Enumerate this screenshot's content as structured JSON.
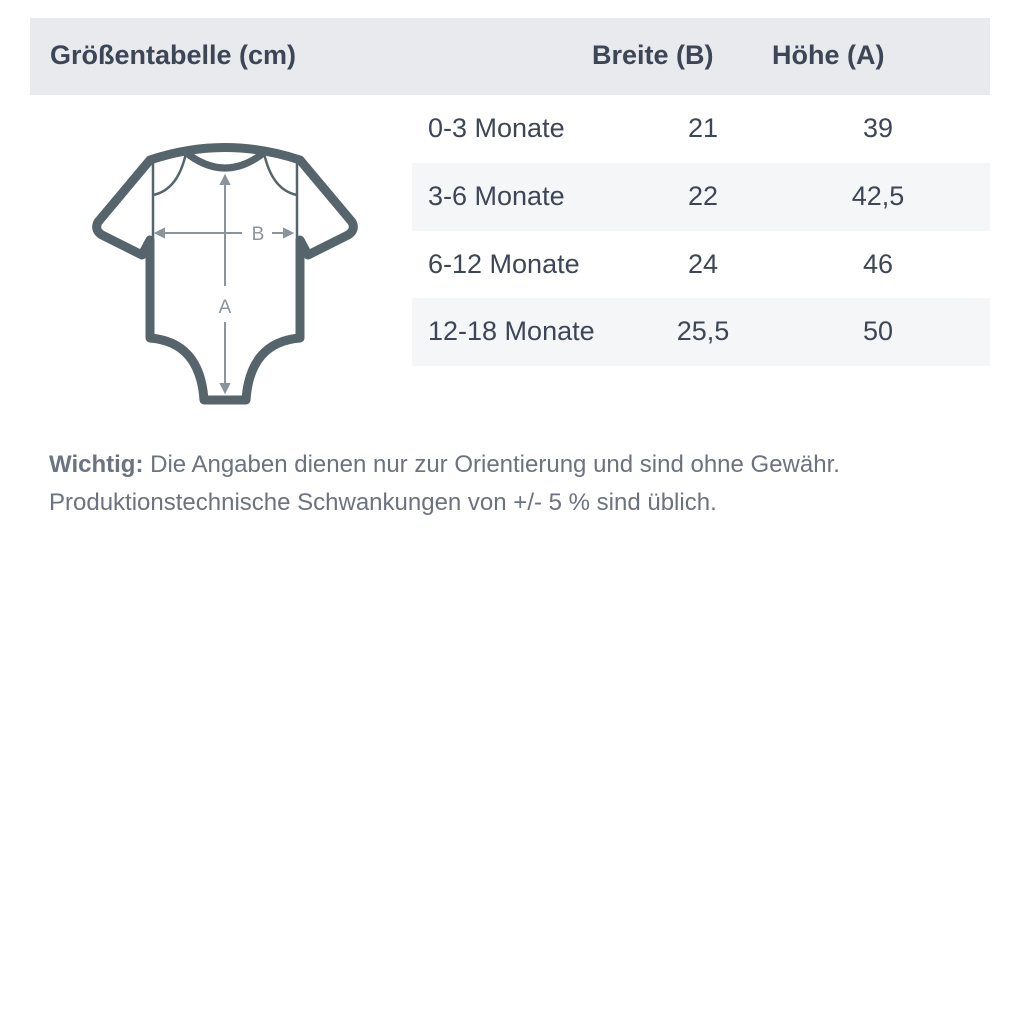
{
  "header": {
    "title": "Größentabelle (cm)",
    "col_width": "Breite (B)",
    "col_height": "Höhe (A)"
  },
  "rows": [
    {
      "size": "0-3 Monate",
      "width": "21",
      "height": "39"
    },
    {
      "size": "3-6 Monate",
      "width": "22",
      "height": "42,5"
    },
    {
      "size": "6-12 Monate",
      "width": "24",
      "height": "46"
    },
    {
      "size": "12-18 Monate",
      "width": "25,5",
      "height": "50"
    }
  ],
  "diagram": {
    "label_b": "B",
    "label_a": "A",
    "outline_color": "#56646b",
    "arrow_color": "#8a949c"
  },
  "note": {
    "label": "Wichtig:",
    "line1": "Die Angaben dienen nur zur Orientierung und sind ohne Gewähr.",
    "line2": "Produktionstechnische Schwankungen von +/- 5 % sind üblich."
  }
}
